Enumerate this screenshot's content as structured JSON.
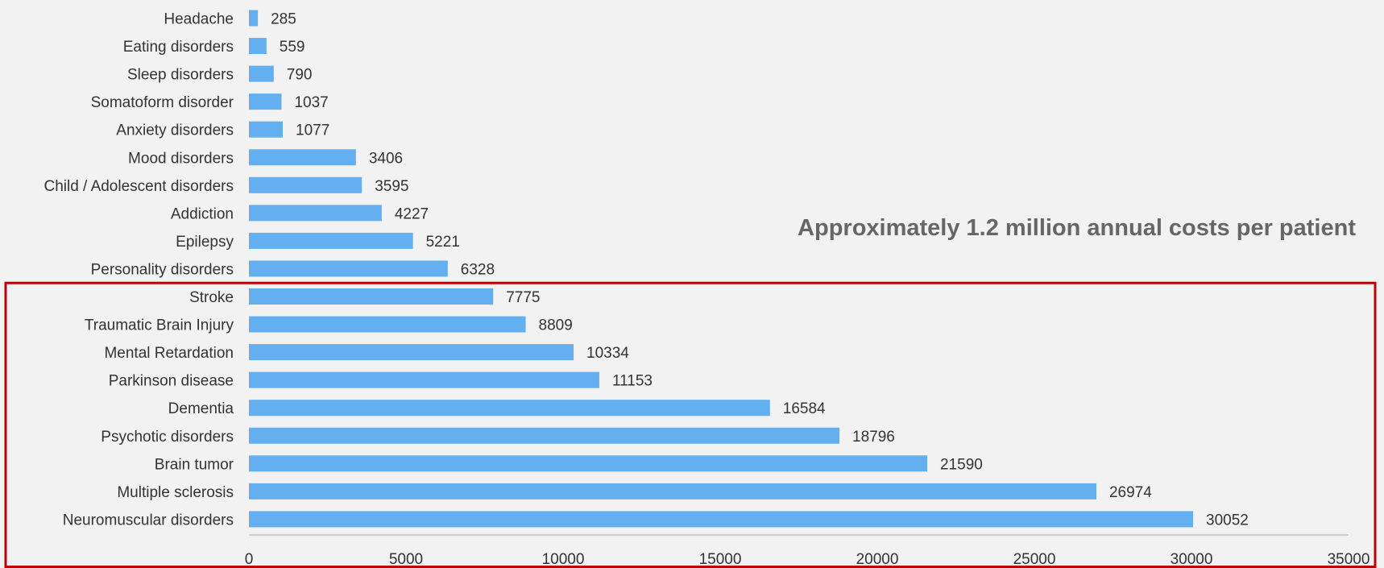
{
  "chart_data": {
    "type": "bar",
    "orientation": "horizontal",
    "categories": [
      "Headache",
      "Eating disorders",
      "Sleep disorders",
      "Somatoform disorder",
      "Anxiety disorders",
      "Mood disorders",
      "Child / Adolescent disorders",
      "Addiction",
      "Epilepsy",
      "Personality disorders",
      "Stroke",
      "Traumatic Brain Injury",
      "Mental Retardation",
      "Parkinson disease",
      "Dementia",
      "Psychotic disorders",
      "Brain tumor",
      "Multiple sclerosis",
      "Neuromuscular disorders"
    ],
    "values": [
      285,
      559,
      790,
      1037,
      1077,
      3406,
      3595,
      4227,
      5221,
      6328,
      7775,
      8809,
      10334,
      11153,
      16584,
      18796,
      21590,
      26974,
      30052
    ],
    "xlim": [
      0,
      35000
    ],
    "xticks": [
      0,
      5000,
      10000,
      15000,
      20000,
      25000,
      30000,
      35000
    ],
    "title": "",
    "xlabel": "",
    "ylabel": "",
    "grid": false,
    "legend": "none",
    "bar_color": "#64aff0",
    "annotation": "Approximately 1.2 million annual costs per patient",
    "highlight": {
      "from_category": "Stroke",
      "to_category": "Neuromuscular disorders",
      "color": "#c00000"
    }
  }
}
